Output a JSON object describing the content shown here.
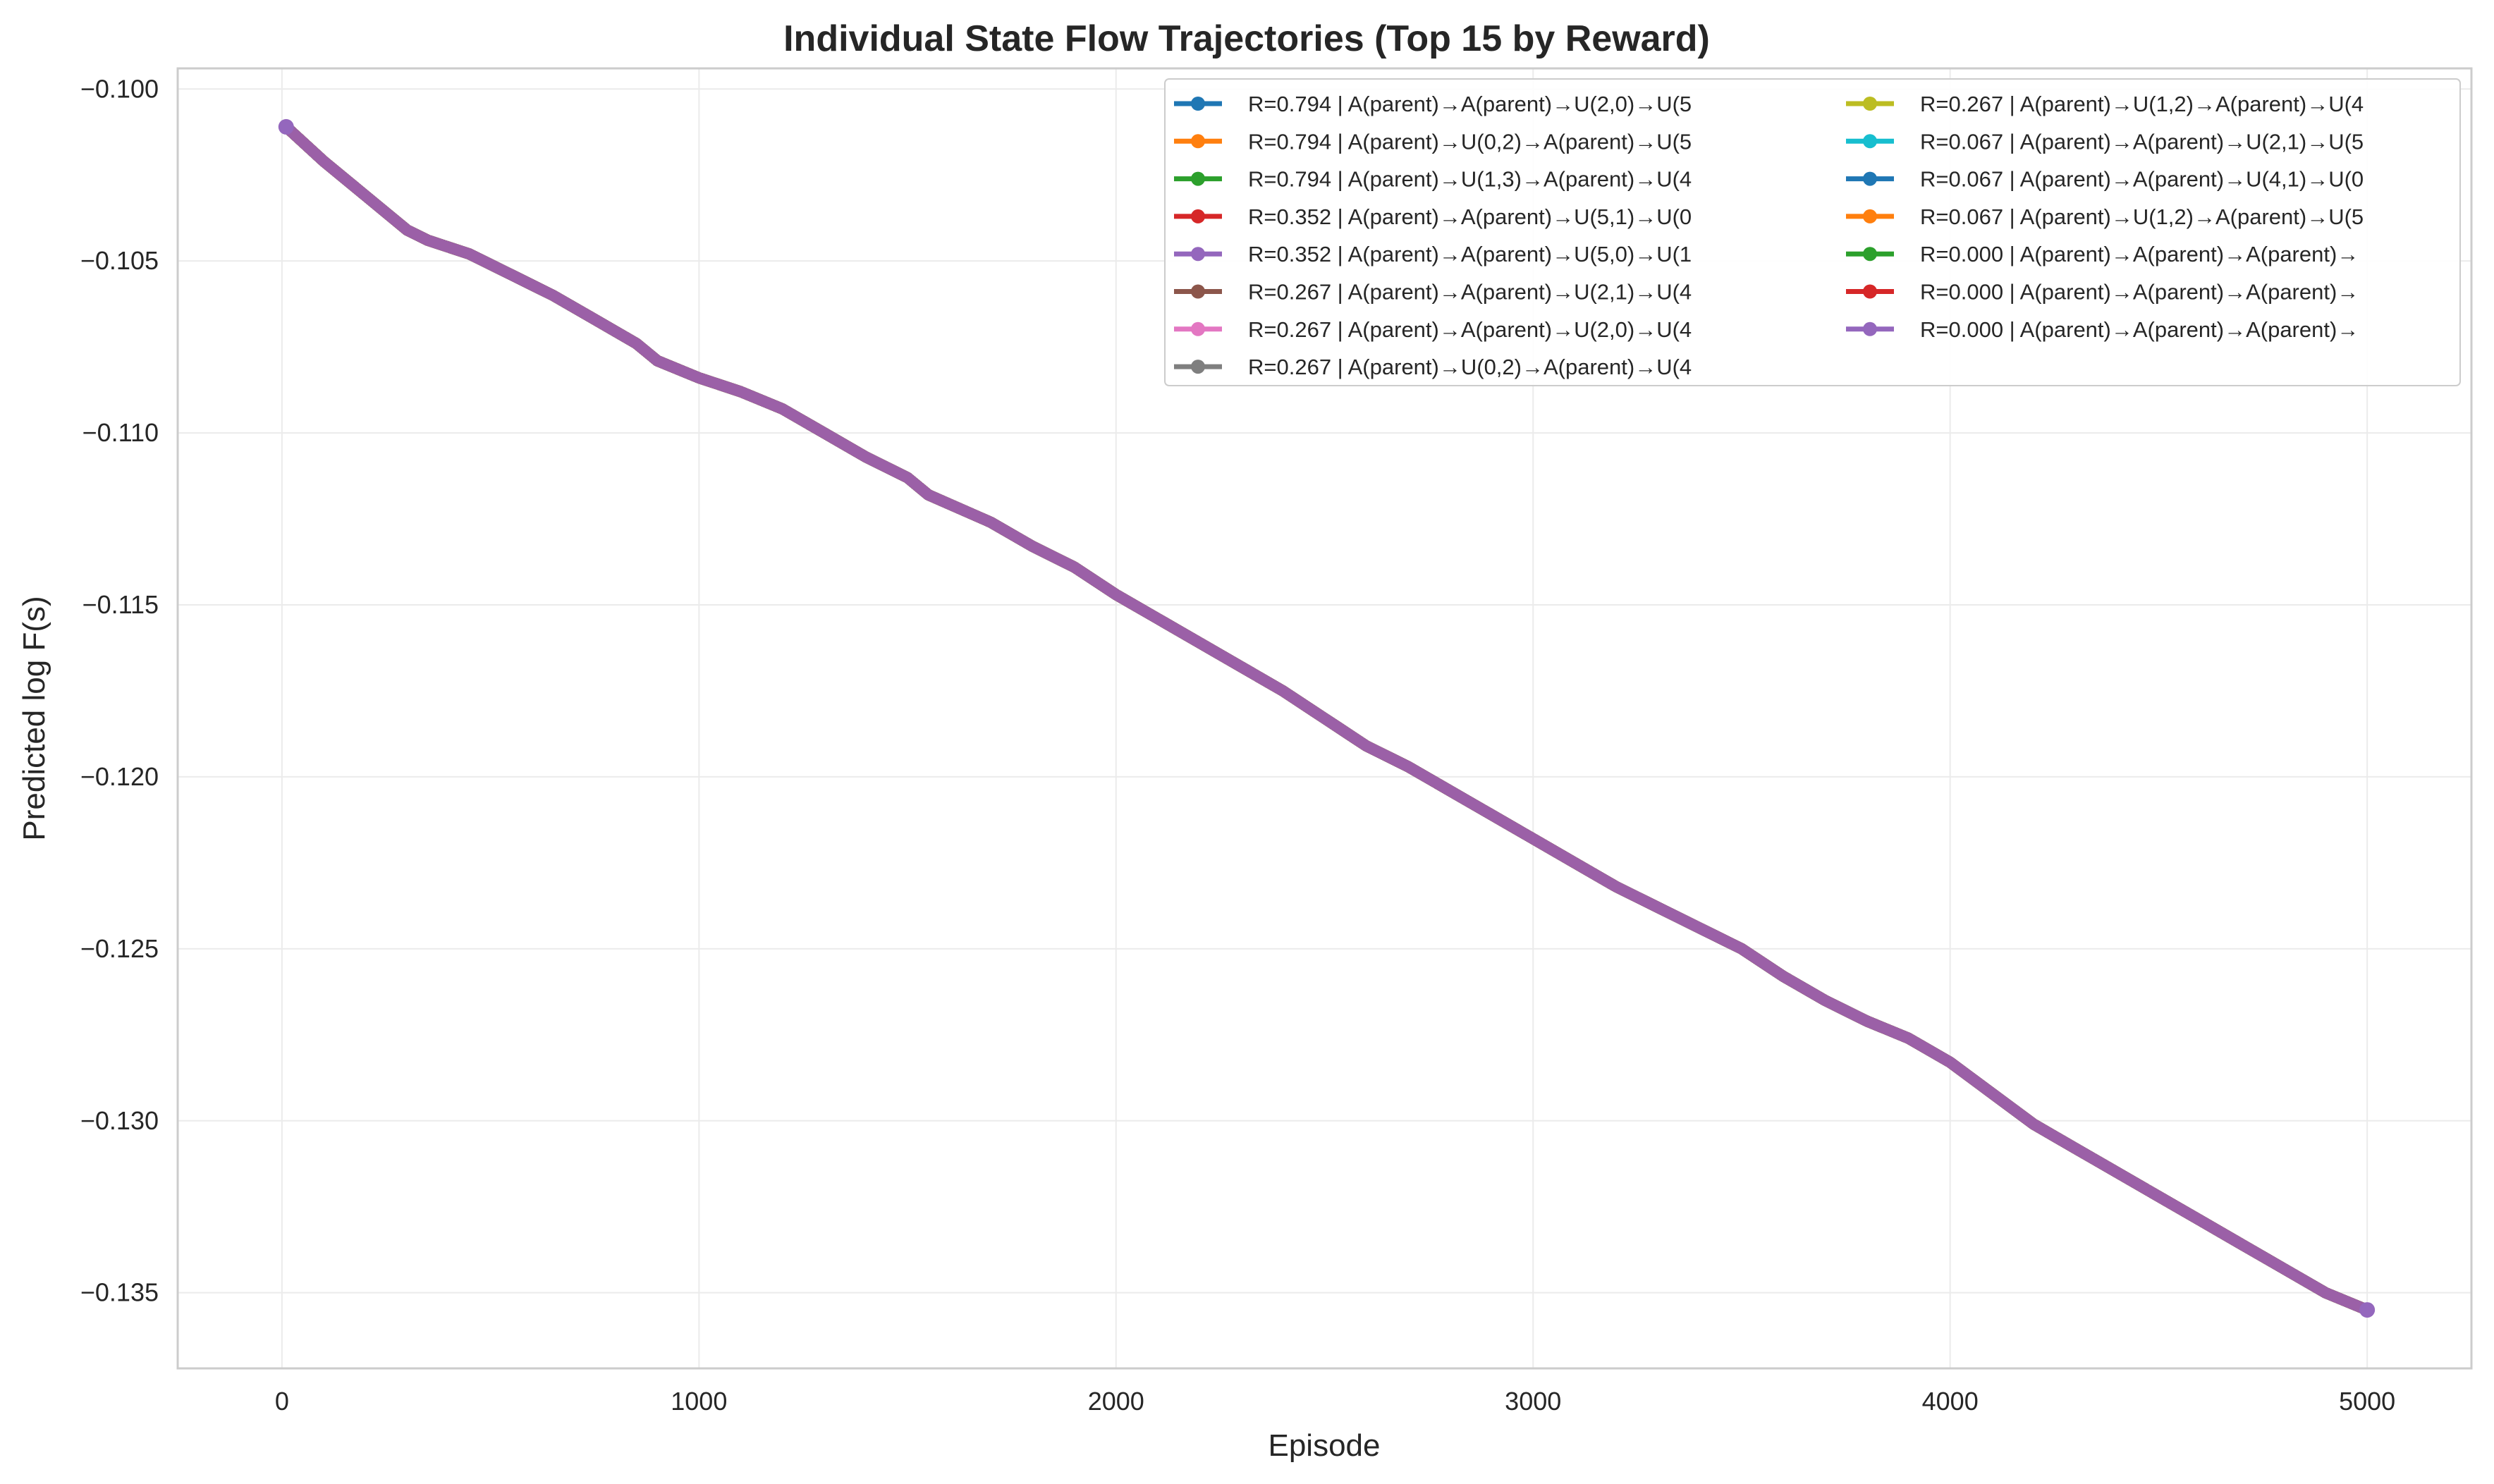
{
  "chart_data": {
    "type": "line",
    "title": "Individual State Flow Trajectories (Top 15 by Reward)",
    "xlabel": "Episode",
    "ylabel": "Predicted log F(s)",
    "xlim": [
      -250,
      5250
    ],
    "ylim": [
      -0.1372,
      -0.0994
    ],
    "xticks": [
      0,
      1000,
      2000,
      3000,
      4000,
      5000
    ],
    "xtick_labels": [
      "0",
      "1000",
      "2000",
      "3000",
      "4000",
      "5000"
    ],
    "yticks": [
      -0.1,
      -0.105,
      -0.11,
      -0.115,
      -0.12,
      -0.125,
      -0.13,
      -0.135
    ],
    "ytick_labels": [
      "−0.100",
      "−0.105",
      "−0.110",
      "−0.115",
      "−0.120",
      "−0.125",
      "−0.130",
      "−0.135"
    ],
    "grid": true,
    "legend_position": "top-right",
    "legend_columns": 2,
    "x": [
      10,
      100,
      200,
      300,
      350,
      450,
      550,
      650,
      750,
      850,
      900,
      1000,
      1100,
      1200,
      1300,
      1400,
      1500,
      1550,
      1700,
      1800,
      1900,
      2000,
      2100,
      2200,
      2300,
      2400,
      2500,
      2600,
      2700,
      2800,
      2900,
      3000,
      3100,
      3200,
      3300,
      3400,
      3500,
      3600,
      3700,
      3800,
      3900,
      4000,
      4100,
      4200,
      4300,
      4400,
      4500,
      4600,
      4700,
      4800,
      4900,
      5000
    ],
    "y": [
      -0.1011,
      -0.1021,
      -0.1031,
      -0.1041,
      -0.1044,
      -0.1048,
      -0.1054,
      -0.106,
      -0.1067,
      -0.1074,
      -0.1079,
      -0.1084,
      -0.1088,
      -0.1093,
      -0.11,
      -0.1107,
      -0.1113,
      -0.1118,
      -0.1126,
      -0.1133,
      -0.1139,
      -0.1147,
      -0.1154,
      -0.1161,
      -0.1168,
      -0.1175,
      -0.1183,
      -0.1191,
      -0.1197,
      -0.1204,
      -0.1211,
      -0.1218,
      -0.1225,
      -0.1232,
      -0.1238,
      -0.1244,
      -0.125,
      -0.1258,
      -0.1265,
      -0.1271,
      -0.1276,
      -0.1283,
      -0.1292,
      -0.1301,
      -0.1308,
      -0.1315,
      -0.1322,
      -0.1329,
      -0.1336,
      -0.1343,
      -0.135,
      -0.1355
    ],
    "series": [
      {
        "name": "R=0.794 | A(parent)→A(parent)→U(2,0)→U(5",
        "color": "#1f77b4"
      },
      {
        "name": "R=0.794 | A(parent)→U(0,2)→A(parent)→U(5",
        "color": "#ff7f0e"
      },
      {
        "name": "R=0.794 | A(parent)→U(1,3)→A(parent)→U(4",
        "color": "#2ca02c"
      },
      {
        "name": "R=0.352 | A(parent)→A(parent)→U(5,1)→U(0",
        "color": "#d62728"
      },
      {
        "name": "R=0.352 | A(parent)→A(parent)→U(5,0)→U(1",
        "color": "#9467bd"
      },
      {
        "name": "R=0.267 | A(parent)→A(parent)→U(2,1)→U(4",
        "color": "#8c564b"
      },
      {
        "name": "R=0.267 | A(parent)→A(parent)→U(2,0)→U(4",
        "color": "#e377c2"
      },
      {
        "name": "R=0.267 | A(parent)→U(0,2)→A(parent)→U(4",
        "color": "#7f7f7f"
      },
      {
        "name": "R=0.267 | A(parent)→U(1,2)→A(parent)→U(4",
        "color": "#bcbd22"
      },
      {
        "name": "R=0.067 | A(parent)→A(parent)→U(2,1)→U(5",
        "color": "#17becf"
      },
      {
        "name": "R=0.067 | A(parent)→A(parent)→U(4,1)→U(0",
        "color": "#1f77b4"
      },
      {
        "name": "R=0.067 | A(parent)→U(1,2)→A(parent)→U(5",
        "color": "#ff7f0e"
      },
      {
        "name": "R=0.000 | A(parent)→A(parent)→A(parent)→",
        "color": "#2ca02c"
      },
      {
        "name": "R=0.000 | A(parent)→A(parent)→A(parent)→",
        "color": "#d62728"
      },
      {
        "name": "R=0.000 | A(parent)→A(parent)→A(parent)→",
        "color": "#9467bd"
      }
    ]
  }
}
